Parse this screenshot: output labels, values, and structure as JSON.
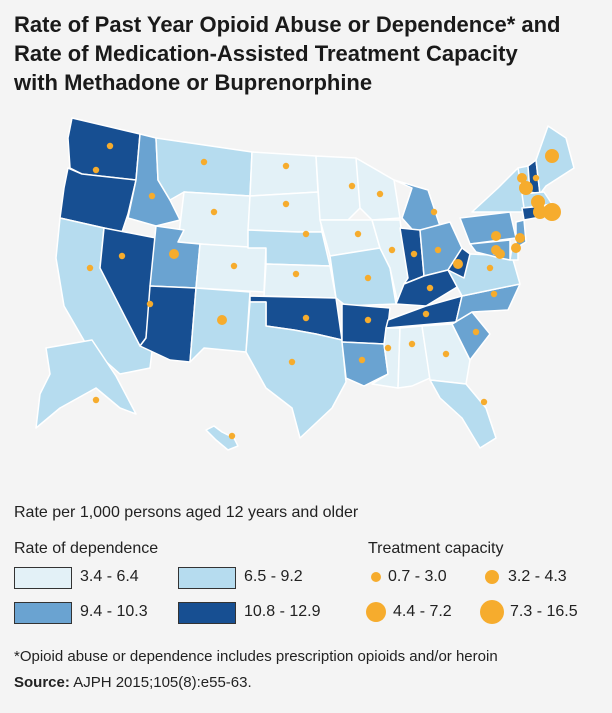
{
  "title": {
    "line1": "Rate of Past Year Opioid Abuse or Dependence* and",
    "line2": "Rate of Medication-Assisted Treatment Capacity",
    "line3": "with Methadone or Buprenorphine"
  },
  "subtitle": "Rate per 1,000 persons aged 12 years and older",
  "colors": {
    "bin1": "#e3f1f7",
    "bin2": "#b6dcef",
    "bin3": "#6aa3d1",
    "bin4": "#174f92",
    "dot": "#f6ac2d",
    "border": "#ffffff"
  },
  "legend": {
    "dependence_title": "Rate of dependence",
    "dependence_bins": [
      {
        "label": "3.4 - 6.4",
        "color": "#e3f1f7"
      },
      {
        "label": "6.5 - 9.2",
        "color": "#b6dcef"
      },
      {
        "label": "9.4 - 10.3",
        "color": "#6aa3d1"
      },
      {
        "label": "10.8 - 12.9",
        "color": "#174f92"
      }
    ],
    "capacity_title": "Treatment capacity",
    "capacity_bins": [
      {
        "label": "0.7 - 3.0",
        "size": 1
      },
      {
        "label": "3.2 - 4.3",
        "size": 2
      },
      {
        "label": "4.4 - 7.2",
        "size": 3
      },
      {
        "label": "7.3 - 16.5",
        "size": 4
      }
    ]
  },
  "map_data": {
    "states": [
      {
        "name": "WA",
        "bin": 4,
        "cap": 1
      },
      {
        "name": "OR",
        "bin": 4,
        "cap": 1
      },
      {
        "name": "CA",
        "bin": 2,
        "cap": 1
      },
      {
        "name": "NV",
        "bin": 4,
        "cap": 1
      },
      {
        "name": "ID",
        "bin": 3,
        "cap": 1
      },
      {
        "name": "MT",
        "bin": 2,
        "cap": 1
      },
      {
        "name": "WY",
        "bin": 1,
        "cap": 1
      },
      {
        "name": "UT",
        "bin": 3,
        "cap": 2
      },
      {
        "name": "AZ",
        "bin": 4,
        "cap": 1
      },
      {
        "name": "CO",
        "bin": 1,
        "cap": 1
      },
      {
        "name": "NM",
        "bin": 2,
        "cap": 2
      },
      {
        "name": "ND",
        "bin": 1,
        "cap": 1
      },
      {
        "name": "SD",
        "bin": 1,
        "cap": 1
      },
      {
        "name": "NE",
        "bin": 2,
        "cap": 1
      },
      {
        "name": "KS",
        "bin": 1,
        "cap": 1
      },
      {
        "name": "OK",
        "bin": 4,
        "cap": 1
      },
      {
        "name": "TX",
        "bin": 2,
        "cap": 1
      },
      {
        "name": "MN",
        "bin": 1,
        "cap": 1
      },
      {
        "name": "IA",
        "bin": 1,
        "cap": 1
      },
      {
        "name": "MO",
        "bin": 2,
        "cap": 1
      },
      {
        "name": "AR",
        "bin": 4,
        "cap": 1
      },
      {
        "name": "LA",
        "bin": 3,
        "cap": 1
      },
      {
        "name": "WI",
        "bin": 1,
        "cap": 1
      },
      {
        "name": "IL",
        "bin": 1,
        "cap": 1
      },
      {
        "name": "MI",
        "bin": 3,
        "cap": 1
      },
      {
        "name": "IN",
        "bin": 4,
        "cap": 1
      },
      {
        "name": "OH",
        "bin": 3,
        "cap": 1
      },
      {
        "name": "KY",
        "bin": 4,
        "cap": 1
      },
      {
        "name": "TN",
        "bin": 4,
        "cap": 1
      },
      {
        "name": "MS",
        "bin": 1,
        "cap": 1
      },
      {
        "name": "AL",
        "bin": 1,
        "cap": 1
      },
      {
        "name": "GA",
        "bin": 1,
        "cap": 1
      },
      {
        "name": "FL",
        "bin": 2,
        "cap": 1
      },
      {
        "name": "SC",
        "bin": 3,
        "cap": 1
      },
      {
        "name": "NC",
        "bin": 3,
        "cap": 1
      },
      {
        "name": "VA",
        "bin": 2,
        "cap": 1
      },
      {
        "name": "WV",
        "bin": 4,
        "cap": 2
      },
      {
        "name": "PA",
        "bin": 3,
        "cap": 2
      },
      {
        "name": "NY",
        "bin": 2,
        "cap": 2
      },
      {
        "name": "VT",
        "bin": 2,
        "cap": 3
      },
      {
        "name": "NH",
        "bin": 4,
        "cap": 1
      },
      {
        "name": "ME",
        "bin": 2,
        "cap": 3
      },
      {
        "name": "MA",
        "bin": 2,
        "cap": 3
      },
      {
        "name": "RI",
        "bin": 4,
        "cap": 4
      },
      {
        "name": "CT",
        "bin": 4,
        "cap": 3
      },
      {
        "name": "NJ",
        "bin": 3,
        "cap": 2
      },
      {
        "name": "DE",
        "bin": 2,
        "cap": 2
      },
      {
        "name": "MD",
        "bin": 3,
        "cap": 2
      },
      {
        "name": "DC",
        "bin": 3,
        "cap": 2
      },
      {
        "name": "AK",
        "bin": 2,
        "cap": 1
      },
      {
        "name": "HI",
        "bin": 2,
        "cap": 1
      }
    ]
  },
  "footnote": "*Opioid abuse or dependence includes prescription opioids and/or heroin",
  "source": {
    "label": "Source:",
    "text": " AJPH 2015;105(8):e55-63."
  }
}
